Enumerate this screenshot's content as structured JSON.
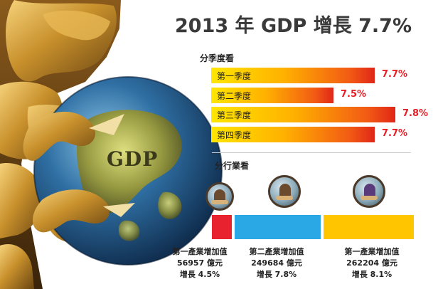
{
  "title": "2013 年 GDP 增長 7.7%",
  "globe_label": "GDP",
  "sections": {
    "quarterly": "分季度看",
    "industry": "分行業看"
  },
  "colors": {
    "quarter_bar_start": "#ffe600",
    "quarter_bar_end": "#e02618",
    "value_red": "#e61e26",
    "industry_1": "#e8232f",
    "industry_2": "#2aa8e6",
    "industry_3": "#ffc600"
  },
  "icons": [
    "farmer-icon",
    "factory-worker-icon",
    "service-worker-icon",
    "gold-dragon",
    "globe"
  ],
  "chart_data": [
    {
      "type": "bar",
      "orientation": "horizontal",
      "categories": [
        "第一季度",
        "第二季度",
        "第三季度",
        "第四季度"
      ],
      "values": [
        7.7,
        7.5,
        7.8,
        7.7
      ],
      "value_labels": [
        "7.7%",
        "7.5%",
        "7.8%",
        "7.7%"
      ],
      "unit": "%",
      "title": "",
      "xlabel": "",
      "ylabel": "",
      "grid": false
    },
    {
      "type": "bar",
      "orientation": "horizontal-segments",
      "categories": [
        "第一產業增加值",
        "第二產業增加值",
        "第一產業增加值"
      ],
      "values": [
        56957,
        249684,
        262204
      ],
      "value_labels": [
        "56957 億元",
        "249684 億元",
        "262204 億元"
      ],
      "growth_labels": [
        "增長 4.5%",
        "增長 7.8%",
        "增長 8.1%"
      ],
      "growth": [
        4.5,
        7.8,
        8.1
      ],
      "unit": "億元",
      "title": "",
      "grid": false
    }
  ]
}
